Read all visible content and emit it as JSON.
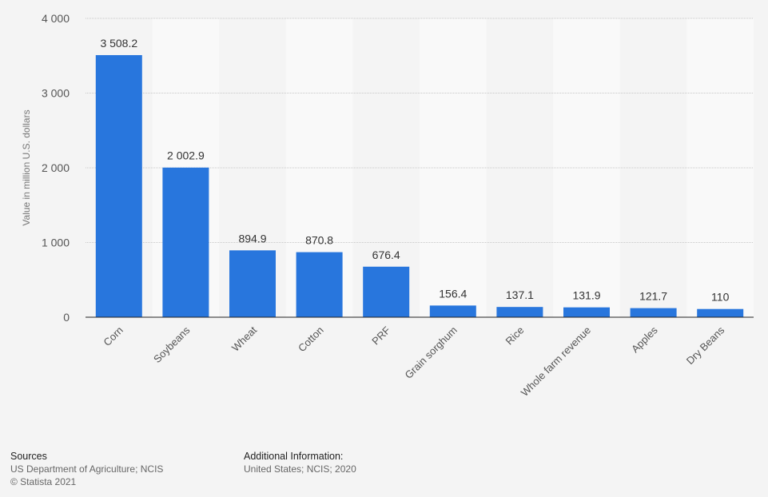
{
  "chart_data": {
    "type": "bar",
    "title": "",
    "xlabel": "",
    "ylabel": "Value in million U.S. dollars",
    "ylim": [
      0,
      4000
    ],
    "yticks": [
      0,
      1000,
      2000,
      3000,
      4000
    ],
    "ytick_labels": [
      "0",
      "1 000",
      "2 000",
      "3 000",
      "4 000"
    ],
    "grid": true,
    "categories": [
      "Corn",
      "Soybeans",
      "Wheat",
      "Cotton",
      "PRF",
      "Grain sorghum",
      "Rice",
      "Whole farm revenue",
      "Apples",
      "Dry Beans"
    ],
    "values": [
      3508.2,
      2002.9,
      894.9,
      870.8,
      676.4,
      156.4,
      137.1,
      131.9,
      121.7,
      110
    ],
    "value_labels": [
      "3 508.2",
      "2 002.9",
      "894.9",
      "870.8",
      "676.4",
      "156.4",
      "137.1",
      "131.9",
      "121.7",
      "110"
    ],
    "bar_color": "#2876dd"
  },
  "footer": {
    "sources_heading": "Sources",
    "sources_line1": "US Department of Agriculture; NCIS",
    "sources_line2": "© Statista 2021",
    "additional_heading": "Additional Information:",
    "additional_line1": "United States; NCIS; 2020"
  }
}
